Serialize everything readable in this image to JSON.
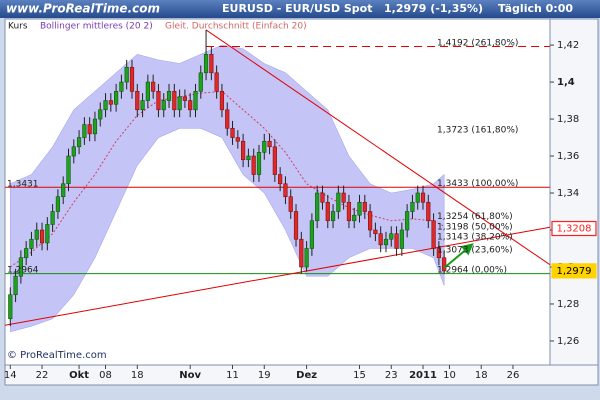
{
  "header": {
    "site": "www.ProRealTime.com",
    "title": "EURUSD - EUR/USD Spot",
    "last": "1,2979 (-1,35%)",
    "period": "Täglich 0:00"
  },
  "chart_data": {
    "type": "candlestick",
    "name": "Kurs",
    "up_color": "#20a020",
    "down_color": "#e02828",
    "open": [
      1.272,
      1.285,
      1.295,
      1.305,
      1.31,
      1.315,
      1.32,
      1.313,
      1.323,
      1.33,
      1.338,
      1.345,
      1.36,
      1.365,
      1.37,
      1.377,
      1.372,
      1.38,
      1.385,
      1.39,
      1.388,
      1.395,
      1.4,
      1.408,
      1.395,
      1.385,
      1.39,
      1.4,
      1.395,
      1.385,
      1.39,
      1.395,
      1.385,
      1.392,
      1.39,
      1.385,
      1.395,
      1.405,
      1.415,
      1.405,
      1.395,
      1.385,
      1.375,
      1.37,
      1.368,
      1.358,
      1.36,
      1.35,
      1.362,
      1.368,
      1.365,
      1.35,
      1.345,
      1.338,
      1.33,
      1.315,
      1.3,
      1.31,
      1.325,
      1.34,
      1.335,
      1.325,
      1.33,
      1.34,
      1.335,
      1.325,
      1.328,
      1.335,
      1.33,
      1.32,
      1.318,
      1.312,
      1.315,
      1.318,
      1.31,
      1.32,
      1.33,
      1.335,
      1.34,
      1.335,
      1.325,
      1.31,
      1.305
    ],
    "high": [
      1.289,
      1.299,
      1.309,
      1.314,
      1.319,
      1.324,
      1.324,
      1.327,
      1.334,
      1.342,
      1.349,
      1.364,
      1.369,
      1.374,
      1.381,
      1.381,
      1.384,
      1.389,
      1.394,
      1.394,
      1.399,
      1.404,
      1.412,
      1.412,
      1.399,
      1.394,
      1.404,
      1.404,
      1.399,
      1.394,
      1.399,
      1.399,
      1.396,
      1.396,
      1.394,
      1.399,
      1.409,
      1.4282,
      1.419,
      1.409,
      1.399,
      1.389,
      1.379,
      1.374,
      1.372,
      1.364,
      1.364,
      1.366,
      1.372,
      1.372,
      1.369,
      1.354,
      1.349,
      1.342,
      1.334,
      1.319,
      1.314,
      1.329,
      1.344,
      1.344,
      1.339,
      1.334,
      1.344,
      1.344,
      1.339,
      1.332,
      1.339,
      1.339,
      1.334,
      1.324,
      1.322,
      1.319,
      1.322,
      1.322,
      1.324,
      1.334,
      1.339,
      1.344,
      1.344,
      1.339,
      1.329,
      1.314,
      1.309
    ],
    "low": [
      1.268,
      1.281,
      1.291,
      1.301,
      1.306,
      1.311,
      1.309,
      1.309,
      1.319,
      1.326,
      1.334,
      1.341,
      1.356,
      1.361,
      1.366,
      1.368,
      1.368,
      1.376,
      1.381,
      1.384,
      1.384,
      1.391,
      1.396,
      1.391,
      1.381,
      1.381,
      1.386,
      1.391,
      1.381,
      1.381,
      1.386,
      1.381,
      1.381,
      1.386,
      1.381,
      1.381,
      1.391,
      1.401,
      1.401,
      1.391,
      1.381,
      1.371,
      1.366,
      1.364,
      1.354,
      1.354,
      1.346,
      1.346,
      1.358,
      1.361,
      1.346,
      1.341,
      1.334,
      1.326,
      1.311,
      1.2964,
      1.2975,
      1.306,
      1.321,
      1.331,
      1.321,
      1.321,
      1.326,
      1.331,
      1.321,
      1.321,
      1.324,
      1.326,
      1.316,
      1.314,
      1.308,
      1.308,
      1.311,
      1.306,
      1.306,
      1.316,
      1.326,
      1.331,
      1.331,
      1.321,
      1.306,
      1.301,
      1.2964
    ],
    "close": [
      1.285,
      1.295,
      1.305,
      1.31,
      1.315,
      1.32,
      1.313,
      1.323,
      1.33,
      1.338,
      1.345,
      1.36,
      1.365,
      1.37,
      1.377,
      1.372,
      1.38,
      1.385,
      1.39,
      1.388,
      1.395,
      1.4,
      1.408,
      1.395,
      1.385,
      1.39,
      1.4,
      1.395,
      1.385,
      1.39,
      1.395,
      1.385,
      1.392,
      1.39,
      1.385,
      1.395,
      1.405,
      1.415,
      1.405,
      1.395,
      1.385,
      1.375,
      1.37,
      1.368,
      1.358,
      1.36,
      1.35,
      1.362,
      1.368,
      1.365,
      1.35,
      1.345,
      1.338,
      1.33,
      1.315,
      1.3,
      1.31,
      1.325,
      1.34,
      1.335,
      1.325,
      1.33,
      1.34,
      1.335,
      1.325,
      1.328,
      1.335,
      1.33,
      1.32,
      1.318,
      1.312,
      1.315,
      1.318,
      1.31,
      1.32,
      1.33,
      1.335,
      1.34,
      1.335,
      1.325,
      1.31,
      1.305,
      1.2979
    ],
    "bands": {
      "name": "Bollinger mittleres (20 2)",
      "color": "#c4c4f6",
      "legend_color": "#7a3ab0",
      "x": [
        0,
        4,
        8,
        12,
        16,
        20,
        24,
        28,
        32,
        36,
        40,
        44,
        48,
        52,
        56,
        60,
        64,
        68,
        72,
        76,
        80,
        82
      ],
      "upper": [
        1.345,
        1.35,
        1.365,
        1.385,
        1.395,
        1.405,
        1.415,
        1.412,
        1.41,
        1.415,
        1.42,
        1.418,
        1.41,
        1.405,
        1.395,
        1.385,
        1.36,
        1.345,
        1.34,
        1.342,
        1.345,
        1.35
      ],
      "lower": [
        1.265,
        1.268,
        1.272,
        1.285,
        1.305,
        1.33,
        1.355,
        1.37,
        1.375,
        1.375,
        1.37,
        1.35,
        1.34,
        1.32,
        1.295,
        1.295,
        1.305,
        1.31,
        1.31,
        1.31,
        1.305,
        1.29
      ]
    },
    "ma": {
      "name": "Gleit. Durchschnitt (Einfach 20)",
      "color": "#d04060",
      "legend_color": "#d06868",
      "x": [
        0,
        4,
        8,
        12,
        16,
        20,
        24,
        28,
        32,
        36,
        40,
        44,
        48,
        52,
        56,
        60,
        64,
        68,
        72,
        76,
        80,
        82
      ],
      "values": [
        1.3,
        1.308,
        1.318,
        1.335,
        1.35,
        1.368,
        1.382,
        1.39,
        1.392,
        1.394,
        1.395,
        1.385,
        1.375,
        1.362,
        1.345,
        1.338,
        1.332,
        1.328,
        1.325,
        1.326,
        1.325,
        1.322
      ]
    },
    "hlines": [
      {
        "x": [
          37,
          102
        ],
        "value": 1.4192,
        "color": "#e00000",
        "dashed": true
      },
      {
        "x": [
          -1,
          102
        ],
        "value": 1.3431,
        "color": "#e00000",
        "dashed": false
      },
      {
        "x": [
          -1,
          102
        ],
        "value": 1.2964,
        "color": "#109010",
        "dashed": false
      }
    ],
    "trendlines": [
      {
        "x": [
          37,
          102
        ],
        "y": [
          1.4282,
          1.3012
        ],
        "color": "#e00000"
      },
      {
        "x": [
          -1,
          102
        ],
        "y": [
          1.2685,
          1.3215
        ],
        "color": "#e00000"
      }
    ],
    "arrow": {
      "x": [
        82,
        87
      ],
      "y": [
        1.2995,
        1.3115
      ],
      "color": "#1a9a1a"
    },
    "annotations": [
      {
        "text": "1,4192 (261,80%)",
        "value": 1.4192,
        "side": "right"
      },
      {
        "text": "1,3723 (161,80%)",
        "value": 1.3723,
        "side": "right"
      },
      {
        "text": "1,3433 (100,00%)",
        "value": 1.3433,
        "side": "right"
      },
      {
        "text": "1,3254 (61,80%)",
        "value": 1.3254,
        "side": "right"
      },
      {
        "text": "1,3198 (50,00%)",
        "value": 1.3198,
        "side": "right"
      },
      {
        "text": "1,3143 (38,20%)",
        "value": 1.3143,
        "side": "right"
      },
      {
        "text": "1,3073 (23,60%)",
        "value": 1.3073,
        "side": "right"
      },
      {
        "text": "1,2964 (0,00%)",
        "value": 1.2964,
        "side": "right"
      },
      {
        "text": "1,3431",
        "value": 1.3431,
        "side": "left"
      },
      {
        "text": "1,2964",
        "value": 1.2964,
        "side": "left"
      }
    ],
    "price_labels": [
      {
        "value": 1.3208,
        "label": "1,3208",
        "color": "#ff2020",
        "text_color": "#ff2020"
      },
      {
        "value": 1.2979,
        "label": "1,2979",
        "color": "#ffd200",
        "text_color": "#000000"
      }
    ],
    "xlim": [
      -1,
      102
    ],
    "xticks": [
      {
        "value": 0,
        "label": "14"
      },
      {
        "value": 6,
        "label": "22"
      },
      {
        "value": 13,
        "label": "Okt"
      },
      {
        "value": 18,
        "label": "08"
      },
      {
        "value": 24,
        "label": "18"
      },
      {
        "value": 34,
        "label": "Nov"
      },
      {
        "value": 42,
        "label": "11"
      },
      {
        "value": 48,
        "label": "19"
      },
      {
        "value": 56,
        "label": "Dez"
      },
      {
        "value": 66,
        "label": "15"
      },
      {
        "value": 72,
        "label": "23"
      },
      {
        "value": 78,
        "label": "2011"
      },
      {
        "value": 83,
        "label": "10"
      },
      {
        "value": 89,
        "label": "18"
      },
      {
        "value": 95,
        "label": "26"
      }
    ],
    "ylim": [
      1.247,
      1.4341
    ],
    "yticks": [
      {
        "value": 1.26,
        "label": "1,26"
      },
      {
        "value": 1.28,
        "label": "1,28"
      },
      {
        "value": 1.3,
        "label": "1,3"
      },
      {
        "value": 1.32,
        "label": "1,32"
      },
      {
        "value": 1.34,
        "label": "1,34"
      },
      {
        "value": 1.36,
        "label": "1,36"
      },
      {
        "value": 1.38,
        "label": "1,38"
      },
      {
        "value": 1.4,
        "label": "1,4"
      },
      {
        "value": 1.42,
        "label": "1,42"
      }
    ]
  },
  "watermark": "© ProRealTime.com"
}
